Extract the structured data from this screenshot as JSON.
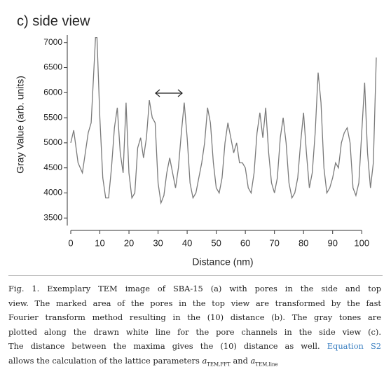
{
  "chart_data": {
    "type": "line",
    "title": "c) side view",
    "x_label": "Distance (nm)",
    "y_label": "Gray Value (arb. units)",
    "x": [
      0,
      1,
      2.5,
      4,
      6,
      7,
      8.5,
      9,
      10,
      11,
      12,
      13,
      14,
      15,
      16,
      17,
      18,
      19,
      20,
      21,
      22,
      23,
      24,
      25,
      26,
      27,
      28,
      29,
      30,
      31,
      32,
      33,
      34,
      35,
      36,
      37,
      38,
      39,
      40,
      41,
      42,
      43,
      44,
      45,
      46,
      47,
      48,
      49,
      50,
      51,
      52,
      53,
      54,
      55,
      56,
      57,
      58,
      59,
      60,
      61,
      62,
      63,
      64,
      65,
      66,
      67,
      68,
      69,
      70,
      71,
      72,
      73,
      74,
      75,
      76,
      77,
      78,
      79,
      80,
      81,
      82,
      83,
      84,
      85,
      86,
      87,
      88,
      89,
      90,
      91,
      92,
      93,
      94,
      95,
      96,
      97,
      98,
      99,
      100,
      101,
      102,
      103,
      104,
      105
    ],
    "series": [
      {
        "color": "#7a7a7a",
        "values": [
          5000,
          5250,
          4600,
          4400,
          5200,
          5400,
          7100,
          7100,
          5500,
          4300,
          3900,
          3900,
          4500,
          5300,
          5700,
          4800,
          4400,
          5800,
          4400,
          3900,
          4000,
          4900,
          5100,
          4700,
          5100,
          5850,
          5500,
          5400,
          4200,
          3800,
          3950,
          4400,
          4700,
          4400,
          4100,
          4500,
          5200,
          5800,
          5100,
          4200,
          3900,
          4000,
          4300,
          4600,
          5000,
          5700,
          5400,
          4600,
          4100,
          4000,
          4300,
          5000,
          5400,
          5100,
          4800,
          5000,
          4600,
          4600,
          4500,
          4100,
          4000,
          4400,
          5200,
          5600,
          5100,
          5700,
          4800,
          4200,
          4000,
          4300,
          5100,
          5500,
          5000,
          4200,
          3900,
          4000,
          4300,
          5000,
          5600,
          4800,
          4100,
          4400,
          5200,
          6400,
          5800,
          4500,
          4000,
          4100,
          4300,
          4600,
          4500,
          5000,
          5200,
          5300,
          5000,
          4100,
          3950,
          4200,
          5200,
          6200,
          4800,
          4100,
          4600,
          6700
        ]
      }
    ],
    "xlim": [
      0,
      105
    ],
    "ylim": [
      3350,
      7150
    ],
    "xticks": [
      0,
      10,
      20,
      30,
      40,
      50,
      60,
      70,
      80,
      90,
      100
    ],
    "yticks": [
      3500,
      4000,
      4500,
      5000,
      5500,
      6000,
      6500,
      7000
    ]
  },
  "caption": {
    "lines": [
      "Fig. 1. Exemplary TEM image of SBA-15 (a) with pores in the side and top",
      "view. The marked area of the pores in the top view are transformed by the fast",
      "Fourier transform method resulting in the (10) distance (b). The gray tones are",
      "plotted along the drawn white line for the pore channels in the side view (c).",
      "The distance between the maxima gives the (10) distance as well."
    ],
    "link": "Equation S2",
    "last_line": "allows the calculation of the lattice parameters",
    "symbol": "a",
    "sub_fft": "TEM,FFT",
    "and": "and",
    "sub_line": "TEM,line"
  }
}
